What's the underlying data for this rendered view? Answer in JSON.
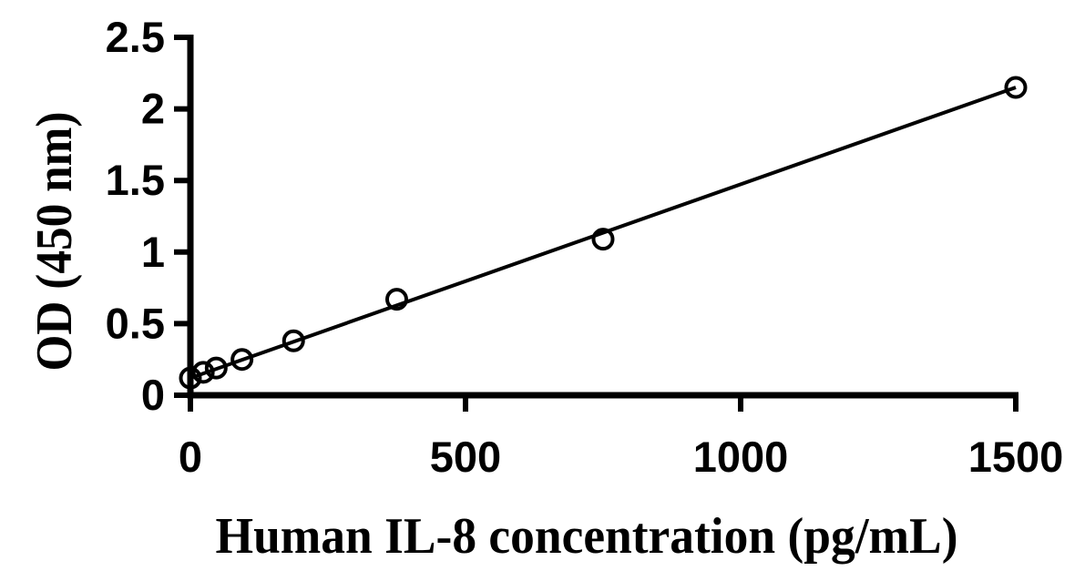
{
  "chart_data": {
    "type": "scatter",
    "title": "",
    "xlabel": "Human IL-8 concentration (pg/mL)",
    "ylabel": "OD (450 nm)",
    "xlim": [
      0,
      1500
    ],
    "ylim": [
      0,
      2.5
    ],
    "xticks": [
      0,
      500,
      1000,
      1500
    ],
    "yticks": [
      0,
      0.5,
      1,
      1.5,
      2,
      2.5
    ],
    "xtick_labels": [
      "0",
      "500",
      "1000",
      "1500"
    ],
    "ytick_labels": [
      "0",
      "0.5",
      "1",
      "1.5",
      "2",
      "2.5"
    ],
    "grid": false,
    "legend": "none",
    "marker": "open-circle",
    "points": [
      {
        "x": 0,
        "y": 0.12
      },
      {
        "x": 23.4,
        "y": 0.16
      },
      {
        "x": 46.9,
        "y": 0.19
      },
      {
        "x": 93.8,
        "y": 0.25
      },
      {
        "x": 187.5,
        "y": 0.38
      },
      {
        "x": 375,
        "y": 0.67
      },
      {
        "x": 750,
        "y": 1.09
      },
      {
        "x": 1500,
        "y": 2.15
      }
    ],
    "trendline": {
      "x": [
        0,
        1500
      ],
      "y": [
        0.12,
        2.15
      ]
    },
    "colors": {
      "background": "#ffffff",
      "axis": "#000000",
      "line": "#000000",
      "marker_stroke": "#000000",
      "text": "#000000"
    }
  }
}
